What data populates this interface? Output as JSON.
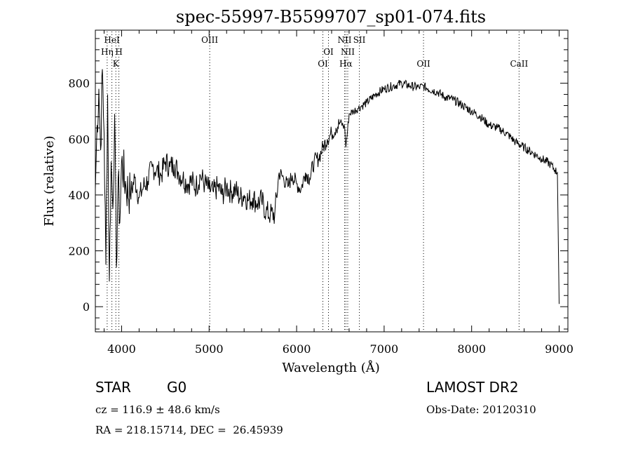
{
  "chart_data": {
    "type": "line",
    "title": "spec-55997-B5599707_sp01-074.fits",
    "xlabel": "Wavelength (Å)",
    "ylabel": "Flux (relative)",
    "xlim": [
      3700,
      9100
    ],
    "ylim": [
      -90,
      990
    ],
    "xticks": [
      "4000",
      "5000",
      "6000",
      "7000",
      "8000",
      "9000"
    ],
    "yticks": [
      "0",
      "200",
      "400",
      "600",
      "800"
    ],
    "grid": false,
    "lines": [
      {
        "wave": 3835,
        "label": "Hη"
      },
      {
        "wave": 3889,
        "label": "HeI"
      },
      {
        "wave": 3934,
        "label": "K"
      },
      {
        "wave": 3969,
        "label": "H"
      },
      {
        "wave": 5007,
        "label": "OIII"
      },
      {
        "wave": 6300,
        "label": "OI"
      },
      {
        "wave": 6364,
        "label": "OI"
      },
      {
        "wave": 6548,
        "label": "NII"
      },
      {
        "wave": 6563,
        "label": "Hα"
      },
      {
        "wave": 6584,
        "label": "NII"
      },
      {
        "wave": 6717,
        "label": "SII"
      },
      {
        "wave": 7450,
        "label": "OII"
      },
      {
        "wave": 8542,
        "label": "CaII"
      }
    ],
    "series": [
      {
        "x": [
          3700,
          3720,
          3740,
          3760,
          3780,
          3800,
          3820,
          3840,
          3860,
          3880,
          3900,
          3920,
          3940,
          3960,
          3980,
          4000,
          4050,
          4100,
          4150,
          4200,
          4250,
          4300,
          4350,
          4400,
          4450,
          4500,
          4550,
          4600,
          4650,
          4700,
          4750,
          4800,
          4850,
          4900,
          4950,
          5000,
          5050,
          5100,
          5150,
          5200,
          5250,
          5300,
          5350,
          5400,
          5450,
          5500,
          5550,
          5600,
          5650,
          5700,
          5750,
          5800,
          5850,
          5900,
          5950,
          6000,
          6050,
          6100,
          6150,
          6200,
          6250,
          6300,
          6350,
          6400,
          6450,
          6500,
          6550,
          6563,
          6600,
          6650,
          6700,
          6750,
          6800,
          6900,
          7000,
          7100,
          7200,
          7300,
          7400,
          7450,
          7500,
          7600,
          7700,
          7800,
          7900,
          8000,
          8100,
          8200,
          8300,
          8400,
          8500,
          8600,
          8700,
          8800,
          8900,
          8950,
          8980,
          9000
        ],
        "y": [
          420,
          650,
          780,
          560,
          850,
          620,
          150,
          760,
          90,
          520,
          350,
          690,
          140,
          460,
          300,
          520,
          430,
          400,
          460,
          390,
          430,
          450,
          500,
          490,
          470,
          520,
          500,
          510,
          480,
          460,
          440,
          450,
          430,
          470,
          440,
          420,
          410,
          430,
          400,
          430,
          410,
          420,
          390,
          400,
          380,
          390,
          370,
          380,
          340,
          330,
          330,
          480,
          460,
          430,
          470,
          440,
          420,
          480,
          460,
          520,
          530,
          570,
          600,
          620,
          640,
          660,
          640,
          570,
          690,
          700,
          710,
          720,
          730,
          760,
          780,
          790,
          800,
          790,
          785,
          790,
          780,
          770,
          750,
          740,
          720,
          700,
          680,
          650,
          640,
          620,
          590,
          570,
          550,
          530,
          510,
          490,
          480,
          10
        ]
      }
    ]
  },
  "info": {
    "object": "STAR",
    "subclass": "G0",
    "survey": "LAMOST DR2",
    "cz": "cz = 116.9 ± 48.6 km/s",
    "obs_date": "Obs-Date: 20120310",
    "coords": "RA = 218.15714, DEC =  26.45939"
  }
}
